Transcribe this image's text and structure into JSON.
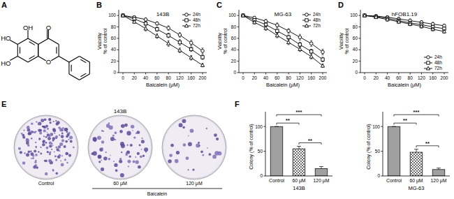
{
  "panel_labels": [
    "A",
    "B",
    "C",
    "D",
    "E",
    "F"
  ],
  "structure": {
    "atom_labels": [
      "OH",
      "HO",
      "HO",
      "O",
      "O"
    ]
  },
  "colony_image": {
    "title": "143B",
    "dish_labels": [
      "Control",
      "60 μM",
      "120 μM"
    ],
    "group_label": "Baicalein"
  },
  "chart_data": [
    {
      "type": "line",
      "title": "143B",
      "x_label": "Baicalein (μM)",
      "y_label": [
        "Viability",
        "% of control"
      ],
      "categories": [
        "0",
        "20",
        "40",
        "60",
        "80",
        "120",
        "160",
        "200"
      ],
      "ylim": [
        0,
        110
      ],
      "yticks": [
        0,
        20,
        40,
        60,
        80,
        100
      ],
      "legend": "upper right",
      "series": [
        {
          "name": "24h",
          "color": "#000000",
          "marker": "circle",
          "values": [
            100,
            97,
            93,
            86,
            78,
            66,
            52,
            38
          ],
          "errors": [
            0,
            2,
            3,
            3,
            4,
            4,
            5,
            5
          ]
        },
        {
          "name": "48h",
          "color": "#000000",
          "marker": "square",
          "values": [
            100,
            94,
            86,
            76,
            65,
            53,
            41,
            27
          ],
          "errors": [
            0,
            3,
            3,
            4,
            4,
            5,
            4,
            4
          ]
        },
        {
          "name": "72h",
          "color": "#000000",
          "marker": "triangle",
          "values": [
            100,
            89,
            77,
            64,
            51,
            39,
            26,
            13
          ],
          "errors": [
            0,
            3,
            4,
            4,
            5,
            4,
            4,
            3
          ]
        }
      ]
    },
    {
      "type": "line",
      "title": "MG-63",
      "x_label": "Baicalein (μM)",
      "y_label": [
        "Viability",
        "% of control"
      ],
      "categories": [
        "0",
        "20",
        "40",
        "60",
        "80",
        "120",
        "160",
        "200"
      ],
      "ylim": [
        0,
        110
      ],
      "yticks": [
        0,
        20,
        40,
        60,
        80,
        100
      ],
      "legend": "upper right",
      "series": [
        {
          "name": "24h",
          "color": "#000000",
          "marker": "circle",
          "values": [
            100,
            96,
            90,
            83,
            73,
            62,
            51,
            36
          ],
          "errors": [
            0,
            2,
            3,
            4,
            4,
            5,
            5,
            5
          ]
        },
        {
          "name": "48h",
          "color": "#000000",
          "marker": "square",
          "values": [
            100,
            92,
            84,
            73,
            62,
            49,
            37,
            23
          ],
          "errors": [
            0,
            3,
            3,
            4,
            4,
            4,
            4,
            4
          ]
        },
        {
          "name": "72h",
          "color": "#000000",
          "marker": "triangle",
          "values": [
            100,
            88,
            78,
            65,
            53,
            41,
            28,
            12
          ],
          "errors": [
            0,
            3,
            4,
            4,
            4,
            4,
            4,
            3
          ]
        }
      ]
    },
    {
      "type": "line",
      "title": "hFOB1.19",
      "x_label": "Baicalein (μM)",
      "y_label": [
        "Viability",
        "% of control"
      ],
      "categories": [
        "0",
        "20",
        "40",
        "60",
        "80",
        "120",
        "160",
        "200"
      ],
      "ylim": [
        0,
        110
      ],
      "yticks": [
        0,
        20,
        40,
        60,
        80,
        100
      ],
      "legend": "lower right",
      "series": [
        {
          "name": "24h",
          "color": "#000000",
          "marker": "circle",
          "values": [
            100,
            99,
            97,
            94,
            91,
            88,
            85,
            82
          ],
          "errors": [
            0,
            2,
            2,
            3,
            3,
            3,
            3,
            3
          ]
        },
        {
          "name": "48h",
          "color": "#000000",
          "marker": "square",
          "values": [
            100,
            98,
            95,
            91,
            87,
            84,
            80,
            77
          ],
          "errors": [
            0,
            2,
            2,
            3,
            3,
            3,
            3,
            3
          ]
        },
        {
          "name": "72h",
          "color": "#000000",
          "marker": "triangle",
          "values": [
            100,
            97,
            93,
            89,
            85,
            81,
            76,
            72
          ],
          "errors": [
            0,
            2,
            3,
            3,
            3,
            3,
            3,
            3
          ]
        }
      ]
    },
    {
      "type": "bar",
      "title": "143B",
      "y_label": "Colony (% of control)",
      "categories": [
        "Control",
        "60 μM",
        "120 μM"
      ],
      "values": [
        100,
        55,
        15
      ],
      "errors": [
        0,
        5,
        4
      ],
      "colors": [
        "#a0a0a0",
        "#707070",
        "#a0a0a0"
      ],
      "ylim": [
        0,
        130
      ],
      "yticks": [
        0,
        50,
        100
      ],
      "annotations": [
        {
          "text": "**",
          "between": [
            "Control",
            "60 μM"
          ]
        },
        {
          "text": "***",
          "between": [
            "Control",
            "120 μM"
          ]
        },
        {
          "text": "**",
          "between": [
            "60 μM",
            "120 μM"
          ]
        }
      ]
    },
    {
      "type": "bar",
      "title": "MG-63",
      "y_label": "Colony (% of control)",
      "categories": [
        "Control",
        "60 μM",
        "120 μM"
      ],
      "values": [
        100,
        48,
        13
      ],
      "errors": [
        0,
        6,
        3
      ],
      "colors": [
        "#a0a0a0",
        "#707070",
        "#a0a0a0"
      ],
      "ylim": [
        0,
        130
      ],
      "yticks": [
        0,
        50,
        100
      ],
      "annotations": [
        {
          "text": "**",
          "between": [
            "Control",
            "60 μM"
          ]
        },
        {
          "text": "***",
          "between": [
            "Control",
            "120 μM"
          ]
        },
        {
          "text": "**",
          "between": [
            "60 μM",
            "120 μM"
          ]
        }
      ]
    }
  ]
}
